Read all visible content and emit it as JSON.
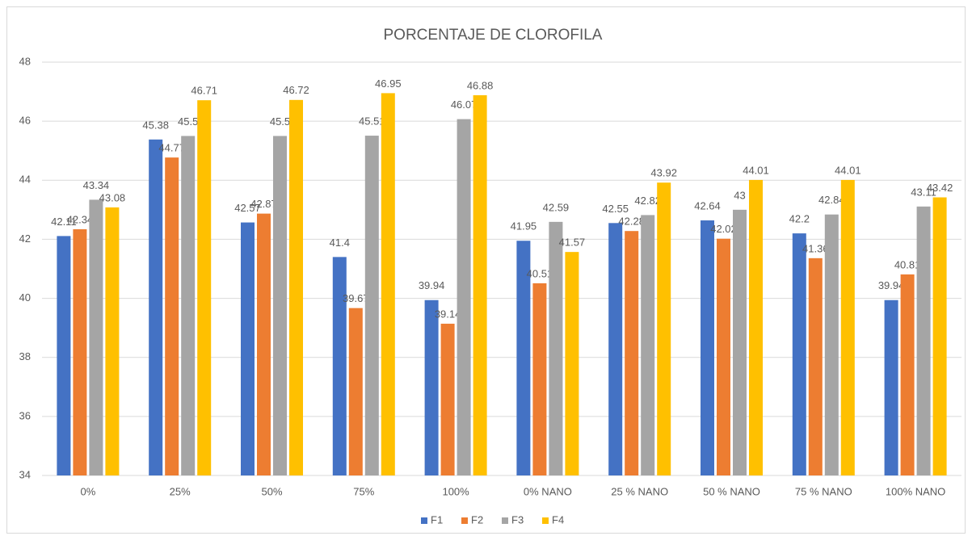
{
  "chart_data": {
    "type": "bar",
    "title": "PORCENTAJE DE CLOROFILA",
    "categories": [
      "0%",
      "25%",
      "50%",
      "75%",
      "100%",
      "0% NANO",
      "25 % NANO",
      "50 % NANO",
      "75 % NANO",
      "100% NANO"
    ],
    "series": [
      {
        "name": "F1",
        "color": "#4472c4",
        "values": [
          42.11,
          45.38,
          42.57,
          41.4,
          39.94,
          41.95,
          42.55,
          42.64,
          42.2,
          39.94
        ]
      },
      {
        "name": "F2",
        "color": "#ed7d31",
        "values": [
          42.34,
          44.77,
          42.87,
          39.67,
          39.14,
          40.51,
          42.28,
          42.02,
          41.36,
          40.81
        ]
      },
      {
        "name": "F3",
        "color": "#a5a5a5",
        "values": [
          43.34,
          45.5,
          45.5,
          45.51,
          46.07,
          42.59,
          42.82,
          43,
          42.84,
          43.11
        ]
      },
      {
        "name": "F4",
        "color": "#ffc000",
        "values": [
          43.08,
          46.71,
          46.72,
          46.95,
          46.88,
          41.57,
          43.92,
          44.01,
          44.01,
          43.42
        ]
      }
    ],
    "ylim": [
      34,
      48
    ],
    "yticks": [
      34,
      36,
      38,
      40,
      42,
      44,
      46,
      48
    ],
    "grid": true,
    "legend": "bottom"
  }
}
